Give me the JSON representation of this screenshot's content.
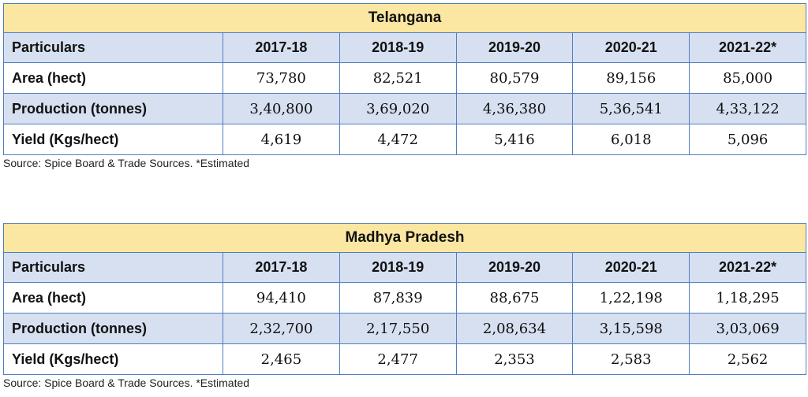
{
  "tables": [
    {
      "title": "Telangana",
      "header": [
        "Particulars",
        "2017-18",
        "2018-19",
        "2019-20",
        "2020-21",
        "2021-22*"
      ],
      "rows": [
        [
          "Area (hect)",
          "73,780",
          "82,521",
          "80,579",
          "89,156",
          "85,000"
        ],
        [
          "Production (tonnes)",
          "3,40,800",
          "3,69,020",
          "4,36,380",
          "5,36,541",
          "4,33,122"
        ],
        [
          "Yield (Kgs/hect)",
          "4,619",
          "4,472",
          "5,416",
          "6,018",
          "5,096"
        ]
      ],
      "source": "Source: Spice Board & Trade Sources. *Estimated"
    },
    {
      "title": "Madhya Pradesh",
      "header": [
        "Particulars",
        "2017-18",
        "2018-19",
        "2019-20",
        "2020-21",
        "2021-22*"
      ],
      "rows": [
        [
          "Area (hect)",
          "94,410",
          "87,839",
          "88,675",
          "1,22,198",
          "1,18,295"
        ],
        [
          "Production (tonnes)",
          "2,32,700",
          "2,17,550",
          "2,08,634",
          "3,15,598",
          "3,03,069"
        ],
        [
          "Yield (Kgs/hect)",
          "2,465",
          "2,477",
          "2,353",
          "2,583",
          "2,562"
        ]
      ],
      "source": "Source: Spice Board & Trade Sources. *Estimated"
    }
  ],
  "colors": {
    "title_bg": "#fbe6a2",
    "header_bg": "#d7e0f1",
    "border": "#4f7fbf"
  }
}
